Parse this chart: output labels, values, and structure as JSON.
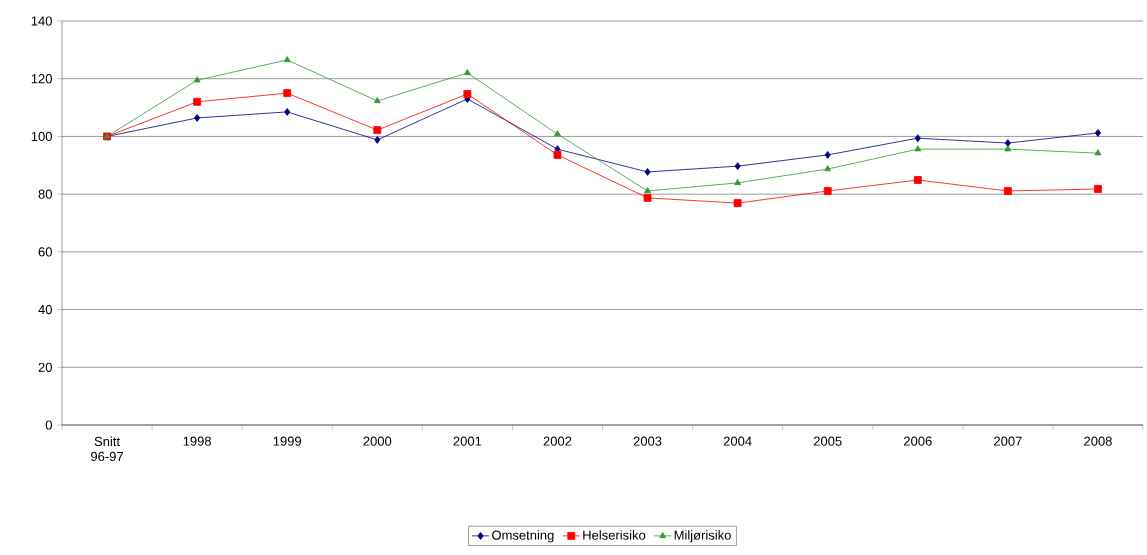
{
  "chart_data": {
    "type": "line",
    "categories": [
      "Snitt 96-97",
      "1998",
      "1999",
      "2000",
      "2001",
      "2002",
      "2003",
      "2004",
      "2005",
      "2006",
      "2007",
      "2008"
    ],
    "series": [
      {
        "name": "Omsetning",
        "color": "#000080",
        "marker": "diamond",
        "values": [
          100,
          106.4,
          108.5,
          98.8,
          113,
          95.6,
          87.7,
          89.7,
          93.6,
          99.4,
          97.7,
          101.2
        ]
      },
      {
        "name": "Helserisiko",
        "color": "#ff0000",
        "marker": "square",
        "values": [
          100,
          112,
          115,
          102.2,
          114.7,
          93.6,
          78.7,
          76.9,
          81.1,
          84.9,
          81.1,
          81.8
        ]
      },
      {
        "name": "Miljørisiko",
        "color": "#339933",
        "marker": "triangle",
        "values": [
          100,
          119.5,
          126.5,
          112.3,
          122,
          100.8,
          81.1,
          83.9,
          88.7,
          95.6,
          95.6,
          94.2
        ]
      }
    ],
    "ylim": [
      0,
      140
    ],
    "yticks": [
      0,
      20,
      40,
      60,
      80,
      100,
      120,
      140
    ],
    "grid": "y",
    "legend": "bottom",
    "line_style": "solid"
  }
}
